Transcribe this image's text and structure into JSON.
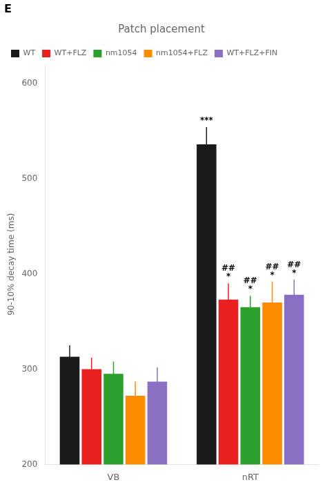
{
  "chart_data": {
    "type": "bar",
    "title": "Patch placement",
    "ylabel": "90-10% decay time (ms)",
    "categories": [
      "VB",
      "nRT"
    ],
    "series": [
      {
        "name": "WT",
        "color": "#1a1a1a",
        "values": [
          313,
          536
        ],
        "errors": [
          12,
          18
        ]
      },
      {
        "name": "WT+FLZ",
        "color": "#e82020",
        "values": [
          300,
          373
        ],
        "errors": [
          12,
          17
        ]
      },
      {
        "name": "nm1054",
        "color": "#2ca02c",
        "values": [
          295,
          365
        ],
        "errors": [
          13,
          12
        ]
      },
      {
        "name": "nm1054+FLZ",
        "color": "#ff8c00",
        "values": [
          272,
          370
        ],
        "errors": [
          15,
          22
        ]
      },
      {
        "name": "WT+FLZ+FIN",
        "color": "#8b6fc4",
        "values": [
          287,
          378
        ],
        "errors": [
          15,
          16
        ]
      }
    ],
    "ylim": [
      200,
      620
    ],
    "yticks": [
      200,
      300,
      400,
      500,
      600
    ],
    "grid": false,
    "legend": "upper left",
    "annotations": [
      {
        "text": "E"
      },
      {
        "text": "***",
        "category": "nRT",
        "series": "WT"
      },
      {
        "text": "##",
        "category": "nRT",
        "series": "WT+FLZ"
      },
      {
        "text": "*",
        "category": "nRT",
        "series": "WT+FLZ"
      },
      {
        "text": "##",
        "category": "nRT",
        "series": "nm1054"
      },
      {
        "text": "*",
        "category": "nRT",
        "series": "nm1054"
      },
      {
        "text": "##",
        "category": "nRT",
        "series": "nm1054+FLZ"
      },
      {
        "text": "*",
        "category": "nRT",
        "series": "nm1054+FLZ"
      },
      {
        "text": "##",
        "category": "nRT",
        "series": "WT+FLZ+FIN"
      },
      {
        "text": "*",
        "category": "nRT",
        "series": "WT+FLZ+FIN"
      }
    ]
  }
}
